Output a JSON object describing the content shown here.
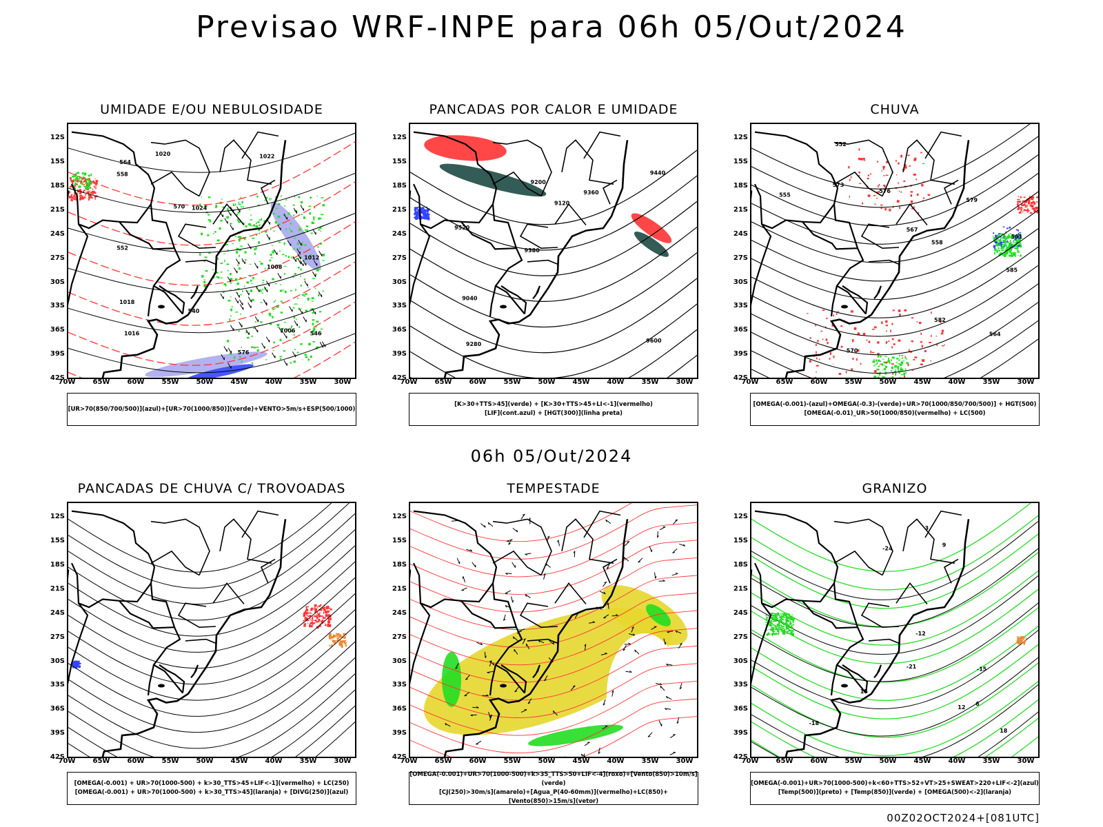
{
  "page": {
    "title": "Previsao WRF-INPE  para 06h 05/Out/2024",
    "sub_date": "06h 05/Out/2024",
    "footer": "00Z02OCT2024+[081UTC]"
  },
  "axes": {
    "lat_labels": [
      "12S",
      "15S",
      "18S",
      "21S",
      "24S",
      "27S",
      "30S",
      "33S",
      "36S",
      "39S",
      "42S"
    ],
    "lat_values": [
      -12,
      -15,
      -18,
      -21,
      -24,
      -27,
      -30,
      -33,
      -36,
      -39,
      -42
    ],
    "lon_labels": [
      "70W",
      "65W",
      "60W",
      "55W",
      "50W",
      "45W",
      "40W",
      "35W",
      "30W"
    ],
    "lon_values": [
      -70,
      -65,
      -60,
      -55,
      -50,
      -45,
      -40,
      -35,
      -30
    ],
    "lon_range": [
      -70,
      -28
    ],
    "lat_range": [
      -42,
      -10
    ]
  },
  "colors": {
    "red": "#ff3333",
    "green": "#22dd22",
    "blue": "#3344ff",
    "lavender": "#aaaaee",
    "darkteal": "#1e4a44",
    "yellow": "#e6d72e",
    "orange": "#ee8833",
    "black": "#000000"
  },
  "chart_data": [
    {
      "type": "map",
      "title": "UMIDADE E/OU NEBULOSIDADE",
      "legend": [
        "[UR>70(850/700/500)](azul)+[UR>70(1000/850)](verde)+VENTO>5m/s+ESP(500/1000)"
      ],
      "contour_labels": [
        "1008",
        "1012",
        "1016",
        "1020",
        "1024",
        "1006",
        "1018",
        "1022",
        "570",
        "576",
        "558",
        "552",
        "564",
        "546",
        "540"
      ]
    },
    {
      "type": "map",
      "title": "PANCADAS POR CALOR E UMIDADE",
      "legend": [
        "[K>30+TTS>45](verde) + [K>30+TTS>45+LI<-1](vermelho)",
        "[LIF](cont.azul) + [HGT(300)](linha preta)"
      ],
      "contour_labels": [
        "9600",
        "9520",
        "9440",
        "9380",
        "9360",
        "9280",
        "9200",
        "9120",
        "9040"
      ]
    },
    {
      "type": "map",
      "title": "CHUVA",
      "legend": [
        "[OMEGA(-0.001)-(azul)+OMEGA(-0.3)-(verde)+UR>70(1000/850/700/500)] + HGT(500)",
        "[OMEGA(-0.01)_UR>50(1000/850)(vermelho) + LC(500)"
      ],
      "contour_labels": [
        "585",
        "582",
        "579",
        "576",
        "573",
        "570",
        "567",
        "564",
        "561",
        "558",
        "555",
        "552"
      ]
    },
    {
      "type": "map",
      "title": "PANCADAS DE CHUVA C/ TROVOADAS",
      "legend": [
        "[OMEGA(-0.001) + UR>70(1000-500) + k>30_TTS>45+LIF<-1](vermelho) + LC(250)",
        "[OMEGA(-0.001) + UR>70(1000-500) + k>30_TTS>45](laranja) + [DIVG(250)](azul)"
      ],
      "contour_labels": []
    },
    {
      "type": "map",
      "title": "TEMPESTADE",
      "legend": [
        "[OMEGA(-0.001)+UR>70(1000-500)+k>35_TTS>50+LIF<-4](roxo)+[Vento(850)>10m/s](verde)",
        "[CJ(250)>30m/s](amarelo)+[Agua_P(40-60mm)](vermelho)+LC(850)+[Vento(850)>15m/s](vetor)"
      ],
      "contour_labels": []
    },
    {
      "type": "map",
      "title": "GRANIZO",
      "legend": [
        "[OMEGA(-0.001)+UR>70(1000-500)+k<60+TTS>52+VT>25+SWEAT>220+LIF<-2](azul)",
        "[Temp(500)](preto) + [Temp(850)](verde) + [OMEGA(500)<-2](laranja)"
      ],
      "contour_labels": [
        "-18",
        "-15",
        "-12",
        "-21",
        "-24",
        "3",
        "6",
        "9",
        "12",
        "15",
        "18"
      ]
    }
  ]
}
